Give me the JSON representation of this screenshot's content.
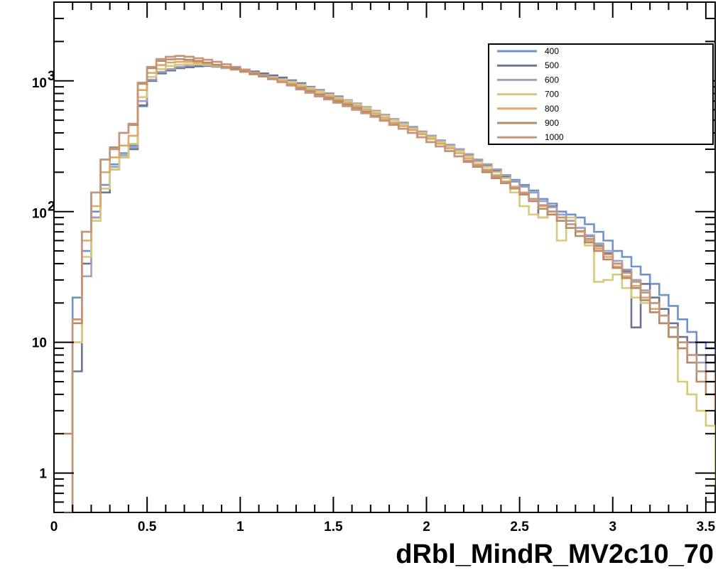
{
  "chart_data": {
    "type": "line",
    "title": "",
    "xlabel": "dRbl_MindR_MV2c10_70",
    "ylabel": "",
    "xlim": [
      0,
      3.55
    ],
    "ylim": [
      0.5,
      4000
    ],
    "y_scale": "log",
    "grid": false,
    "legend_position": "top-right",
    "x_ticks": [
      {
        "value": 0,
        "label": "0"
      },
      {
        "value": 0.5,
        "label": "0.5"
      },
      {
        "value": 1,
        "label": "1"
      },
      {
        "value": 1.5,
        "label": "1.5"
      },
      {
        "value": 2,
        "label": "2"
      },
      {
        "value": 2.5,
        "label": "2.5"
      },
      {
        "value": 3,
        "label": "3"
      },
      {
        "value": 3.5,
        "label": "3.5"
      }
    ],
    "y_ticks": [
      {
        "value": 1,
        "label": "1",
        "sup": ""
      },
      {
        "value": 10,
        "label": "10",
        "sup": ""
      },
      {
        "value": 100,
        "label": "10",
        "sup": "2"
      },
      {
        "value": 1000,
        "label": "10",
        "sup": "3"
      }
    ],
    "bin_width": 0.05,
    "x_start": 0.05,
    "series": [
      {
        "name": "400",
        "color": "#6f93cc",
        "values": [
          0.5,
          22,
          50,
          100,
          160,
          230,
          280,
          320,
          640,
          1000,
          1150,
          1220,
          1260,
          1280,
          1290,
          1300,
          1280,
          1250,
          1220,
          1190,
          1150,
          1110,
          1070,
          1030,
          980,
          930,
          880,
          830,
          780,
          740,
          700,
          660,
          620,
          580,
          540,
          500,
          470,
          440,
          410,
          380,
          350,
          320,
          300,
          275,
          250,
          230,
          210,
          190,
          175,
          160,
          145,
          125,
          115,
          100,
          95,
          90,
          80,
          70,
          60,
          50,
          45,
          38,
          33,
          28,
          23,
          19,
          15,
          12,
          10,
          9,
          8,
          6,
          5,
          3.5
        ]
      },
      {
        "name": "500",
        "color": "#6e7591",
        "values": [
          0.5,
          6,
          40,
          90,
          140,
          210,
          260,
          300,
          650,
          1000,
          1140,
          1200,
          1250,
          1270,
          1300,
          1310,
          1300,
          1270,
          1250,
          1220,
          1180,
          1140,
          1100,
          1060,
          1010,
          960,
          900,
          850,
          800,
          760,
          710,
          670,
          630,
          590,
          550,
          510,
          470,
          430,
          400,
          370,
          345,
          320,
          295,
          270,
          245,
          225,
          205,
          185,
          170,
          155,
          140,
          90,
          110,
          95,
          85,
          75,
          65,
          55,
          48,
          40,
          35,
          13,
          28,
          22,
          18,
          14,
          11,
          10,
          8,
          7,
          6,
          3,
          3.3,
          2
        ]
      },
      {
        "name": "600",
        "color": "#9fa0c0",
        "values": [
          0.5,
          10,
          32,
          90,
          150,
          220,
          270,
          310,
          700,
          1020,
          1170,
          1230,
          1280,
          1310,
          1330,
          1320,
          1300,
          1260,
          1230,
          1190,
          1150,
          1110,
          1070,
          1030,
          990,
          940,
          890,
          840,
          790,
          750,
          710,
          670,
          630,
          590,
          550,
          510,
          480,
          445,
          410,
          380,
          350,
          325,
          300,
          275,
          250,
          230,
          210,
          190,
          172,
          155,
          140,
          120,
          108,
          95,
          85,
          75,
          66,
          57,
          50,
          42,
          36,
          30,
          25,
          20,
          16,
          13,
          10,
          8,
          7,
          6,
          5,
          2.7,
          3,
          2
        ]
      },
      {
        "name": "700",
        "color": "#d9c97a",
        "values": [
          0.5,
          10,
          45,
          85,
          150,
          210,
          260,
          330,
          750,
          1070,
          1230,
          1300,
          1330,
          1340,
          1340,
          1330,
          1300,
          1260,
          1220,
          1180,
          1140,
          1100,
          1060,
          1020,
          980,
          930,
          880,
          830,
          780,
          740,
          700,
          660,
          620,
          580,
          540,
          500,
          465,
          430,
          400,
          370,
          340,
          315,
          290,
          265,
          240,
          220,
          200,
          180,
          140,
          110,
          95,
          90,
          100,
          60,
          90,
          70,
          55,
          29,
          30,
          33,
          26,
          22,
          20,
          17,
          14,
          11,
          5,
          4,
          3,
          2.3,
          0.8,
          2,
          3,
          4
        ]
      },
      {
        "name": "800",
        "color": "#dfa86a",
        "values": [
          0.5,
          15,
          60,
          110,
          200,
          260,
          320,
          380,
          850,
          1150,
          1320,
          1380,
          1400,
          1400,
          1380,
          1350,
          1310,
          1260,
          1220,
          1170,
          1120,
          1080,
          1040,
          1000,
          950,
          900,
          850,
          800,
          760,
          720,
          680,
          640,
          600,
          560,
          520,
          480,
          450,
          420,
          390,
          360,
          330,
          305,
          280,
          255,
          230,
          210,
          190,
          170,
          155,
          140,
          125,
          110,
          100,
          90,
          80,
          70,
          60,
          52,
          45,
          38,
          32,
          27,
          22,
          18,
          14,
          11,
          9,
          7,
          6,
          5,
          4,
          3,
          2.5,
          2
        ]
      },
      {
        "name": "900",
        "color": "#b58b6b",
        "values": [
          2,
          14,
          70,
          140,
          250,
          310,
          400,
          460,
          950,
          1250,
          1420,
          1460,
          1470,
          1450,
          1420,
          1380,
          1330,
          1280,
          1230,
          1180,
          1130,
          1080,
          1030,
          980,
          930,
          880,
          830,
          785,
          740,
          700,
          660,
          620,
          580,
          540,
          500,
          465,
          430,
          400,
          370,
          340,
          315,
          290,
          265,
          240,
          220,
          200,
          180,
          165,
          150,
          135,
          120,
          105,
          95,
          85,
          75,
          65,
          58,
          50,
          43,
          37,
          31,
          26,
          21,
          17,
          14,
          11,
          9,
          7,
          5,
          4,
          3,
          2.5,
          2,
          1.5
        ]
      },
      {
        "name": "1000",
        "color": "#c4957a",
        "values": [
          0.5,
          15,
          70,
          140,
          250,
          300,
          400,
          470,
          970,
          1280,
          1470,
          1530,
          1550,
          1530,
          1490,
          1450,
          1400,
          1340,
          1280,
          1220,
          1160,
          1100,
          1040,
          980,
          920,
          860,
          810,
          760,
          720,
          680,
          640,
          600,
          565,
          530,
          495,
          460,
          430,
          400,
          370,
          340,
          315,
          290,
          265,
          245,
          225,
          205,
          185,
          168,
          152,
          138,
          125,
          112,
          100,
          90,
          80,
          71,
          62,
          54,
          47,
          40,
          34,
          29,
          24,
          20,
          16,
          13,
          10,
          8,
          6,
          5,
          4,
          2,
          1,
          0.7
        ]
      }
    ]
  }
}
